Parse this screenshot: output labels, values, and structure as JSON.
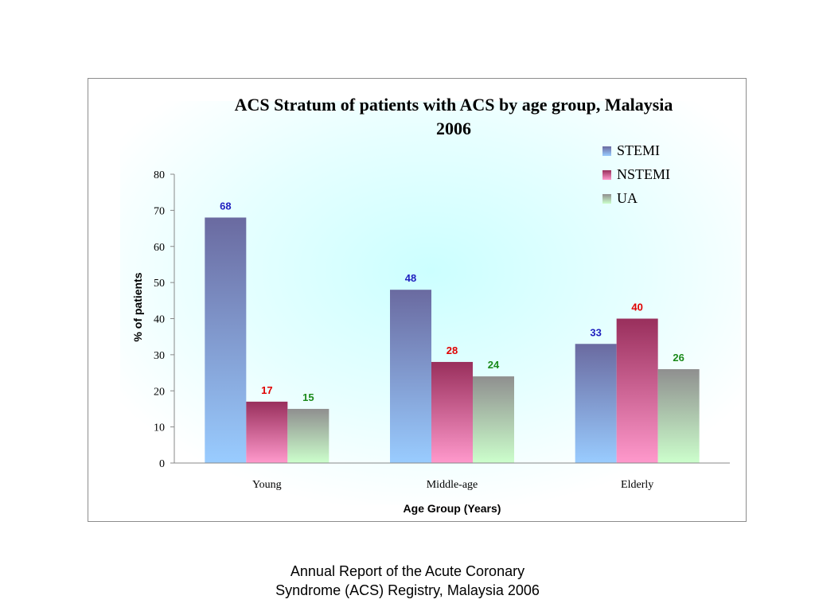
{
  "chart_data": {
    "type": "bar",
    "title_lines": [
      "ACS Stratum of patients with ACS by age group, Malaysia",
      "2006"
    ],
    "xlabel": "Age Group (Years)",
    "ylabel": "% of patients",
    "categories": [
      "Young",
      "Middle-age",
      "Elderly"
    ],
    "ylim": [
      0,
      80
    ],
    "yticks": [
      0,
      10,
      20,
      30,
      40,
      50,
      60,
      70,
      80
    ],
    "legend_position": "top-right",
    "series": [
      {
        "name": "STEMI",
        "values": [
          68,
          48,
          33
        ],
        "color_top": "#6a6aa0",
        "color_bottom": "#99ccff",
        "label_color": "#1f1fbf"
      },
      {
        "name": "NSTEMI",
        "values": [
          17,
          28,
          40
        ],
        "color_top": "#992f5c",
        "color_bottom": "#ff99cc",
        "label_color": "#e00000"
      },
      {
        "name": "UA",
        "values": [
          15,
          24,
          26
        ],
        "color_top": "#8f8f8f",
        "color_bottom": "#ccffcc",
        "label_color": "#1a8a1a"
      }
    ]
  },
  "caption": {
    "line1": "Annual Report of the Acute Coronary",
    "line2": "Syndrome (ACS) Registry, Malaysia 2006"
  }
}
